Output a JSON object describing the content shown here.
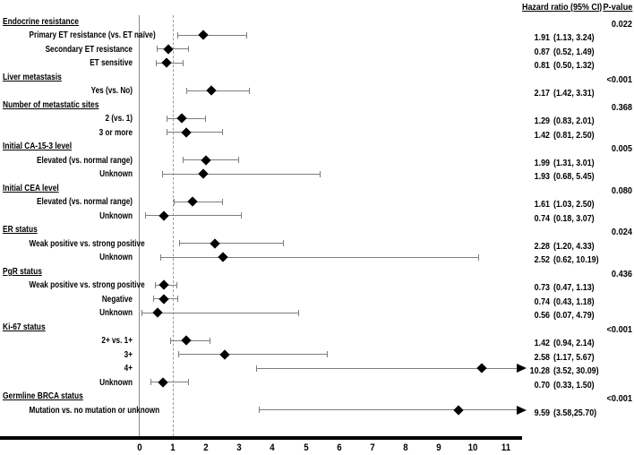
{
  "figure_title": "",
  "column_headers": {
    "hazard": "Hazard ratio (95% CI)",
    "p": "P-value"
  },
  "colors": {
    "marker": "#000000",
    "ci_line": "#7d7d7d",
    "axis": "#000000",
    "reference_line": "#9b9b9b",
    "background": "#ffffff"
  },
  "chart_data": {
    "type": "forest",
    "title": "",
    "x_axis": {
      "min": 0,
      "max": 11,
      "ticks": [
        0,
        1,
        2,
        3,
        4,
        5,
        6,
        7,
        8,
        9,
        10,
        11
      ],
      "reference_line": 1,
      "zero_line": 0,
      "grid": false
    },
    "legend": null,
    "rows": [
      {
        "kind": "section",
        "label": "Endocrine resistance",
        "p": "0.022"
      },
      {
        "kind": "item",
        "label": "Primary ET resistance (vs. ET naïve)",
        "hr": 1.91,
        "lo": 1.13,
        "hi": 3.24,
        "hr_text": "1.91",
        "ci_text": "(1.13, 3.24)",
        "clipped": false
      },
      {
        "kind": "item",
        "label": "Secondary ET resistance",
        "hr": 0.87,
        "lo": 0.52,
        "hi": 1.49,
        "hr_text": "0.87",
        "ci_text": "(0.52, 1.49)",
        "clipped": false
      },
      {
        "kind": "item",
        "label": "ET sensitive",
        "hr": 0.81,
        "lo": 0.5,
        "hi": 1.32,
        "hr_text": "0.81",
        "ci_text": "(0.50, 1.32)",
        "clipped": false
      },
      {
        "kind": "section",
        "label": "Liver metastasis",
        "p": "<0.001"
      },
      {
        "kind": "item",
        "label": "Yes (vs. No)",
        "hr": 2.17,
        "lo": 1.42,
        "hi": 3.31,
        "hr_text": "2.17",
        "ci_text": "(1.42, 3.31)",
        "clipped": false
      },
      {
        "kind": "section",
        "label": "Number of metastatic sites",
        "p": "0.368"
      },
      {
        "kind": "item",
        "label": "2 (vs. 1)",
        "hr": 1.29,
        "lo": 0.83,
        "hi": 2.01,
        "hr_text": "1.29",
        "ci_text": "(0.83, 2.01)",
        "clipped": false
      },
      {
        "kind": "item",
        "label": "3 or more",
        "hr": 1.42,
        "lo": 0.81,
        "hi": 2.5,
        "hr_text": "1.42",
        "ci_text": "(0.81, 2.50)",
        "clipped": false
      },
      {
        "kind": "section",
        "label": "Initial CA-15-3 level",
        "p": "0.005"
      },
      {
        "kind": "item",
        "label": "Elevated (vs. normal range)",
        "hr": 1.99,
        "lo": 1.31,
        "hi": 3.01,
        "hr_text": "1.99",
        "ci_text": "(1.31, 3.01)",
        "clipped": false
      },
      {
        "kind": "item",
        "label": "Unknown",
        "hr": 1.93,
        "lo": 0.68,
        "hi": 5.45,
        "hr_text": "1.93",
        "ci_text": "(0.68, 5.45)",
        "clipped": false
      },
      {
        "kind": "section",
        "label": "Initial CEA level",
        "p": "0.080"
      },
      {
        "kind": "item",
        "label": "Elevated (vs. normal range)",
        "hr": 1.61,
        "lo": 1.03,
        "hi": 2.5,
        "hr_text": "1.61",
        "ci_text": "(1.03, 2.50)",
        "clipped": false
      },
      {
        "kind": "item",
        "label": "Unknown",
        "hr": 0.74,
        "lo": 0.18,
        "hi": 3.07,
        "hr_text": "0.74",
        "ci_text": "(0.18, 3.07)",
        "clipped": false
      },
      {
        "kind": "section",
        "label": "ER status",
        "p": "0.024"
      },
      {
        "kind": "item",
        "label": "Weak positive vs. strong positive",
        "hr": 2.28,
        "lo": 1.2,
        "hi": 4.33,
        "hr_text": "2.28",
        "ci_text": "(1.20, 4.33)",
        "clipped": false
      },
      {
        "kind": "item",
        "label": "Unknown",
        "hr": 2.52,
        "lo": 0.62,
        "hi": 10.19,
        "hr_text": "2.52",
        "ci_text": "(0.62, 10.19)",
        "clipped": false
      },
      {
        "kind": "section",
        "label": "PgR status",
        "p": "0.436"
      },
      {
        "kind": "item",
        "label": "Weak positive vs. strong positive",
        "hr": 0.73,
        "lo": 0.47,
        "hi": 1.13,
        "hr_text": "0.73",
        "ci_text": "(0.47, 1.13)",
        "clipped": false
      },
      {
        "kind": "item",
        "label": "Negative",
        "hr": 0.74,
        "lo": 0.43,
        "hi": 1.18,
        "hr_text": "0.74",
        "ci_text": "(0.43, 1.18)",
        "clipped": false
      },
      {
        "kind": "item",
        "label": "Unknown",
        "hr": 0.56,
        "lo": 0.07,
        "hi": 4.79,
        "hr_text": "0.56",
        "ci_text": "(0.07, 4.79)",
        "clipped": false
      },
      {
        "kind": "section",
        "label": "Ki-67 status",
        "p": "<0.001"
      },
      {
        "kind": "item",
        "label": "2+ vs. 1+",
        "hr": 1.42,
        "lo": 0.94,
        "hi": 2.14,
        "hr_text": "1.42",
        "ci_text": "(0.94, 2.14)",
        "clipped": false
      },
      {
        "kind": "item",
        "label": "3+",
        "hr": 2.58,
        "lo": 1.17,
        "hi": 5.67,
        "hr_text": "2.58",
        "ci_text": "(1.17, 5.67)",
        "clipped": false
      },
      {
        "kind": "item",
        "label": "4+",
        "hr": 10.28,
        "lo": 3.52,
        "hi": 30.09,
        "hr_text": "10.28",
        "ci_text": "(3.52, 30.09)",
        "clipped": true
      },
      {
        "kind": "item",
        "label": "Unknown",
        "hr": 0.7,
        "lo": 0.33,
        "hi": 1.5,
        "hr_text": "0.70",
        "ci_text": "(0.33, 1.50)",
        "clipped": false
      },
      {
        "kind": "section",
        "label": "Germline BRCA status",
        "p": "<0.001"
      },
      {
        "kind": "item",
        "label": "Mutation vs. no mutation or unknown",
        "hr": 9.59,
        "lo": 3.58,
        "hi": 25.7,
        "hr_text": "9.59",
        "ci_text": "(3.58,25.70)",
        "clipped": true
      }
    ]
  }
}
